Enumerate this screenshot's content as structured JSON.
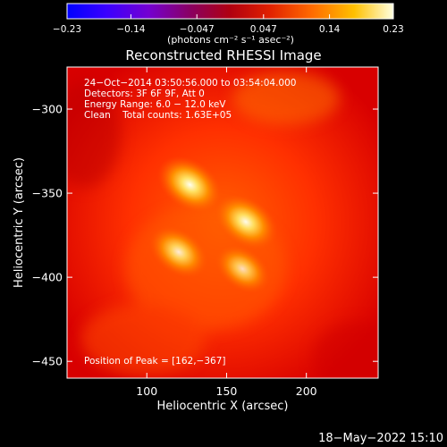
{
  "chart_data": {
    "type": "heatmap",
    "title": "Reconstructed RHESSI Image",
    "xlabel": "Heliocentric X (arcsec)",
    "ylabel": "Heliocentric Y (arcsec)",
    "xlim": [
      50,
      245
    ],
    "ylim": [
      -460,
      -275
    ],
    "x_ticks": [
      100,
      150,
      200
    ],
    "y_ticks": [
      -300,
      -350,
      -400,
      -450
    ],
    "colorbar": {
      "min": -0.23,
      "max": 0.23,
      "tick_values": [
        -0.23,
        -0.14,
        -0.047,
        0.047,
        0.14,
        0.23
      ],
      "tick_labels": [
        "−0.23",
        "−0.14",
        "−0.047",
        "0.047",
        "0.14",
        "0.23"
      ],
      "unit_label": "(photons cm⁻² s⁻¹ asec⁻²)"
    },
    "annotations": [
      "24−Oct−2014 03:50:56.000 to 03:54:04.000",
      "Detectors: 3F 6F 9F, Att 0",
      "Energy Range: 6.0 − 12.0 keV",
      "Clean    Total counts: 1.63E+05"
    ],
    "peak_label": "Position of Peak = [162,−367]",
    "sources": [
      {
        "x": 127,
        "y": -345,
        "level": 1.0
      },
      {
        "x": 162,
        "y": -367,
        "level": 0.95
      },
      {
        "x": 120,
        "y": -385,
        "level": 0.75
      },
      {
        "x": 160,
        "y": -395,
        "level": 0.55
      }
    ],
    "grid": false
  },
  "footer": {
    "timestamp": "18−May−2022 15:10"
  }
}
